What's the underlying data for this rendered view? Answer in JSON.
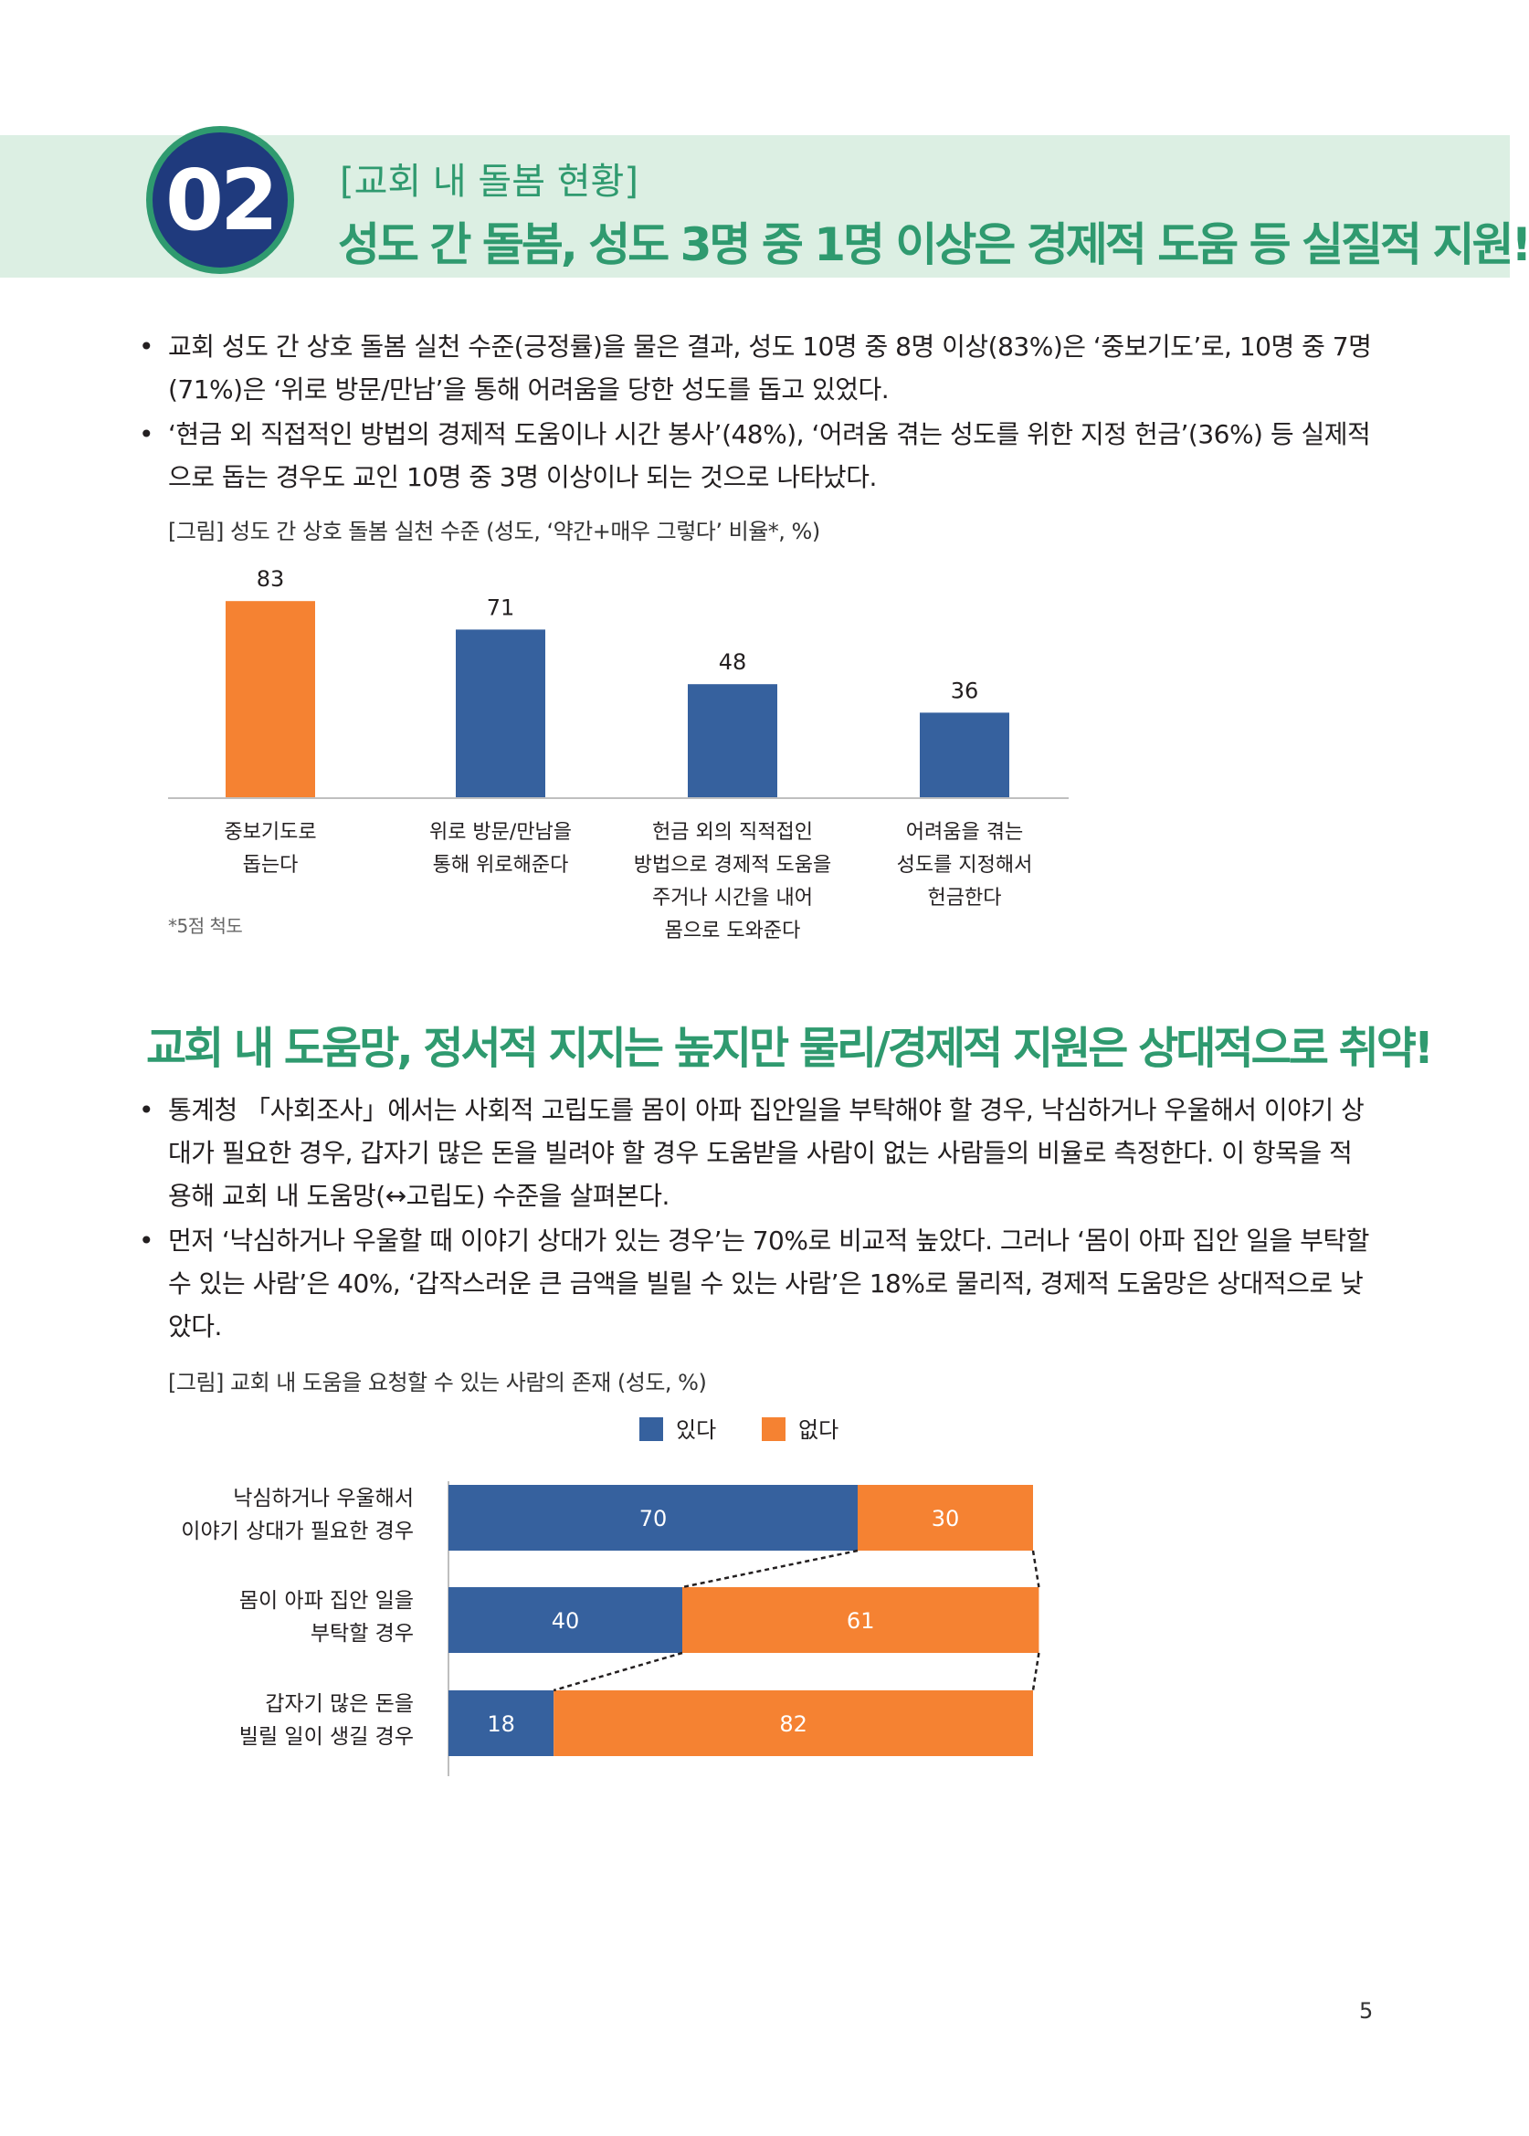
{
  "badge": "02",
  "section_tag": "[교회 내 돌봄 현황]",
  "section_title": "성도 간 돌봄, 성도 3명 중 1명 이상은 경제적 도움 등 실질적 지원!",
  "bullets1": [
    "교회 성도 간 상호 돌봄 실천 수준(긍정률)을 물은 결과, 성도 10명 중 8명 이상(83%)은 ‘중보기도’로, 10명 중 7명(71%)은 ‘위로 방문/만남’을 통해 어려움을 당한 성도를 돕고 있었다.",
    "‘현금 외 직접적인 방법의 경제적 도움이나 시간 봉사’(48%), ‘어려움 겪는 성도를 위한 지정 헌금’(36%) 등 실제적으로 돕는 경우도 교인 10명 중 3명 이상이나 되는 것으로 나타났다."
  ],
  "fig1": {
    "caption": "[그림] 성도 간 상호 돌봄 실천 수준 (성도, ‘약간+매우 그렇다’ 비율*, %)",
    "footnote": "*5점 척도"
  },
  "heading2": "교회 내 도움망, 정서적 지지는 높지만 물리/경제적 지원은 상대적으로 취약!",
  "bullets2": [
    "통계청 「사회조사」에서는 사회적 고립도를 몸이 아파 집안일을 부탁해야 할 경우, 낙심하거나 우울해서 이야기 상대가 필요한 경우, 갑자기 많은 돈을 빌려야 할 경우 도움받을 사람이 없는 사람들의 비율로 측정한다. 이 항목을 적용해 교회 내 도움망(↔고립도) 수준을 살펴본다.",
    "먼저 ‘낙심하거나 우울할 때 이야기 상대가 있는 경우’는 70%로 비교적 높았다. 그러나 ‘몸이 아파 집안 일을 부탁할 수 있는 사람’은 40%, ‘갑작스러운 큰 금액을 빌릴 수 있는 사람’은 18%로 물리적, 경제적 도움망은 상대적으로 낮았다."
  ],
  "fig2": {
    "caption": "[그림] 교회 내 도움을 요청할 수 있는 사람의 존재 (성도, %)"
  },
  "page_number": "5",
  "colors": {
    "green": "#2f9a6f",
    "navy": "#1f3a7d",
    "blue": "#36619e",
    "orange": "#f58232",
    "band": "#dcefe3"
  },
  "chart_data": [
    {
      "type": "bar",
      "categories": [
        [
          "중보기도로",
          "돕는다"
        ],
        [
          "위로 방문/만남을",
          "통해 위로해준다"
        ],
        [
          "헌금 외의 직적접인",
          "방법으로 경제적 도움을",
          "주거나 시간을 내어",
          "몸으로 도와준다"
        ],
        [
          "어려움을 겪는",
          "성도를 지정해서",
          "헌금한다"
        ]
      ],
      "values": [
        83,
        71,
        48,
        36
      ],
      "bar_colors": [
        "#f58232",
        "#36619e",
        "#36619e",
        "#36619e"
      ],
      "ylim": [
        0,
        100
      ]
    },
    {
      "type": "bar",
      "orientation": "horizontal-stacked",
      "categories": [
        [
          "낙심하거나 우울해서",
          "이야기 상대가 필요한 경우"
        ],
        [
          "몸이 아파 집안 일을",
          "부탁할 경우"
        ],
        [
          "갑자기 많은 돈을",
          "빌릴 일이 생길 경우"
        ]
      ],
      "series": [
        {
          "name": "있다",
          "color": "#36619e",
          "values": [
            70,
            40,
            18
          ]
        },
        {
          "name": "없다",
          "color": "#f58232",
          "values": [
            30,
            61,
            82
          ]
        }
      ],
      "legend": "top"
    }
  ]
}
